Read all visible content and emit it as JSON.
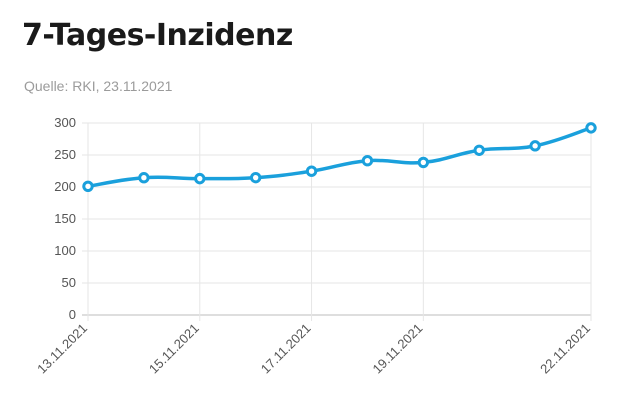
{
  "header": {
    "title": "7-Tages-Inzidenz",
    "source": "Quelle: RKI, 23.11.2021"
  },
  "colors": {
    "line": "#1aa0dc",
    "grid": "#e6e6e6",
    "axis": "#bdbdbd"
  },
  "chart_data": {
    "type": "line",
    "title": "7-Tages-Inzidenz",
    "subtitle": "Quelle: RKI, 23.11.2021",
    "x": [
      "13.11.2021",
      "14.11.2021",
      "15.11.2021",
      "16.11.2021",
      "17.11.2021",
      "18.11.2021",
      "19.11.2021",
      "20.11.2021",
      "21.11.2021",
      "22.11.2021"
    ],
    "x_tick_labels": [
      "13.11.2021",
      "15.11.2021",
      "17.11.2021",
      "19.11.2021",
      "22.11.2021"
    ],
    "series": [
      {
        "values": [
          201.1,
          214.5,
          213.1,
          214.6,
          224.7,
          241.1,
          238.4,
          257.4,
          264.3,
          292.4
        ]
      }
    ],
    "y_ticks": [
      0,
      50,
      100,
      150,
      200,
      250,
      300
    ],
    "ylim": [
      0,
      300
    ],
    "xlabel": "",
    "ylabel": "",
    "grid": true,
    "legend": "none"
  }
}
